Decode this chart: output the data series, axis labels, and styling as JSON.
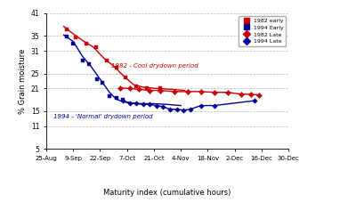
{
  "ylabel": "% Grain moisture",
  "xlabel": "Maturity index (cumulative hours)",
  "ylim": [
    7,
    41
  ],
  "yticks": [
    5,
    11,
    15,
    21,
    25,
    31,
    35,
    41
  ],
  "ytick_labels": [
    "5",
    "11",
    "15",
    "21",
    "25",
    "31",
    "35",
    "41"
  ],
  "annotation1": "1982 - Cool drydown period",
  "annotation1_color": "#cc0000",
  "annotation2": "1994 - 'Normal' drydown period",
  "annotation2_color": "#000099",
  "xtick_labels": [
    "25-Aug",
    "9-Sep",
    "22-Sep",
    "7-Oct",
    "21-Oct",
    "4-Nov",
    "18-Nov",
    "2-Dec",
    "16-Dec",
    "30-Dec"
  ],
  "series": [
    {
      "label": "1982 early",
      "color": "#cc0000",
      "marker": "s",
      "marker_size": 12,
      "scatter_x": [
        1.5,
        2.2,
        3.0,
        3.7,
        4.5,
        5.2,
        5.9,
        6.7,
        7.5,
        8.5
      ],
      "scatter_y": [
        36.8,
        34.5,
        33.0,
        32.0,
        28.5,
        26.5,
        24.0,
        21.5,
        21.2,
        21.0
      ],
      "line_x": [
        1.3,
        2.0,
        2.8,
        3.5,
        4.3,
        5.0,
        5.7,
        6.5,
        7.3,
        8.3,
        9.3,
        10.3
      ],
      "line_y": [
        37.5,
        35.5,
        33.5,
        32.0,
        29.0,
        27.0,
        24.5,
        22.0,
        21.3,
        21.0,
        20.8,
        20.5
      ]
    },
    {
      "label": "1994 Early",
      "color": "#000099",
      "marker": "s",
      "marker_size": 12,
      "scatter_x": [
        1.5,
        2.0,
        2.7,
        3.2,
        3.8,
        4.2,
        4.7,
        5.2,
        5.7
      ],
      "scatter_y": [
        34.8,
        33.0,
        28.5,
        27.5,
        23.5,
        22.5,
        19.0,
        18.5,
        18.0
      ],
      "line_x": [
        1.3,
        2.0,
        2.7,
        3.3,
        4.0,
        4.7,
        5.2,
        5.7,
        6.2,
        7.0,
        8.0,
        9.0,
        10.0
      ],
      "line_y": [
        35.2,
        33.5,
        29.5,
        27.0,
        23.5,
        20.0,
        18.2,
        17.5,
        17.2,
        17.0,
        17.0,
        16.8,
        16.5
      ]
    },
    {
      "label": "1982 Late",
      "color": "#cc0000",
      "marker": "D",
      "marker_size": 10,
      "scatter_x": [
        5.5,
        6.2,
        6.9,
        7.7,
        8.5,
        9.5,
        10.5,
        11.5,
        12.5,
        13.5,
        14.5,
        15.2,
        15.8
      ],
      "scatter_y": [
        21.2,
        21.0,
        20.8,
        20.5,
        20.5,
        20.2,
        20.2,
        20.2,
        20.0,
        20.0,
        19.5,
        19.5,
        19.3
      ],
      "line_x": [
        5.5,
        6.2,
        6.9,
        7.7,
        8.5,
        9.5,
        10.5,
        11.5,
        12.5,
        13.5,
        14.5,
        15.2,
        15.8
      ],
      "line_y": [
        21.2,
        21.0,
        20.8,
        20.5,
        20.5,
        20.2,
        20.2,
        20.2,
        20.0,
        20.0,
        19.5,
        19.5,
        19.3
      ]
    },
    {
      "label": "1994 Late",
      "color": "#000099",
      "marker": "D",
      "marker_size": 8,
      "scatter_x": [
        5.7,
        6.2,
        6.7,
        7.2,
        7.7,
        8.2,
        8.7,
        9.2,
        9.7,
        10.2,
        10.7,
        11.5,
        12.5,
        15.5
      ],
      "scatter_y": [
        17.8,
        17.2,
        17.0,
        16.8,
        16.8,
        16.5,
        16.2,
        15.5,
        15.5,
        15.3,
        15.5,
        16.5,
        16.5,
        17.8
      ],
      "line_x": [
        5.7,
        6.2,
        6.7,
        7.2,
        7.7,
        8.2,
        8.7,
        9.2,
        9.7,
        10.2,
        10.7,
        11.5,
        12.5,
        15.5
      ],
      "line_y": [
        17.8,
        17.2,
        17.0,
        16.8,
        16.8,
        16.5,
        16.2,
        15.5,
        15.5,
        15.3,
        15.5,
        16.5,
        16.5,
        17.8
      ]
    }
  ],
  "background_color": "#ffffff",
  "grid_color": "#aaaaaa"
}
